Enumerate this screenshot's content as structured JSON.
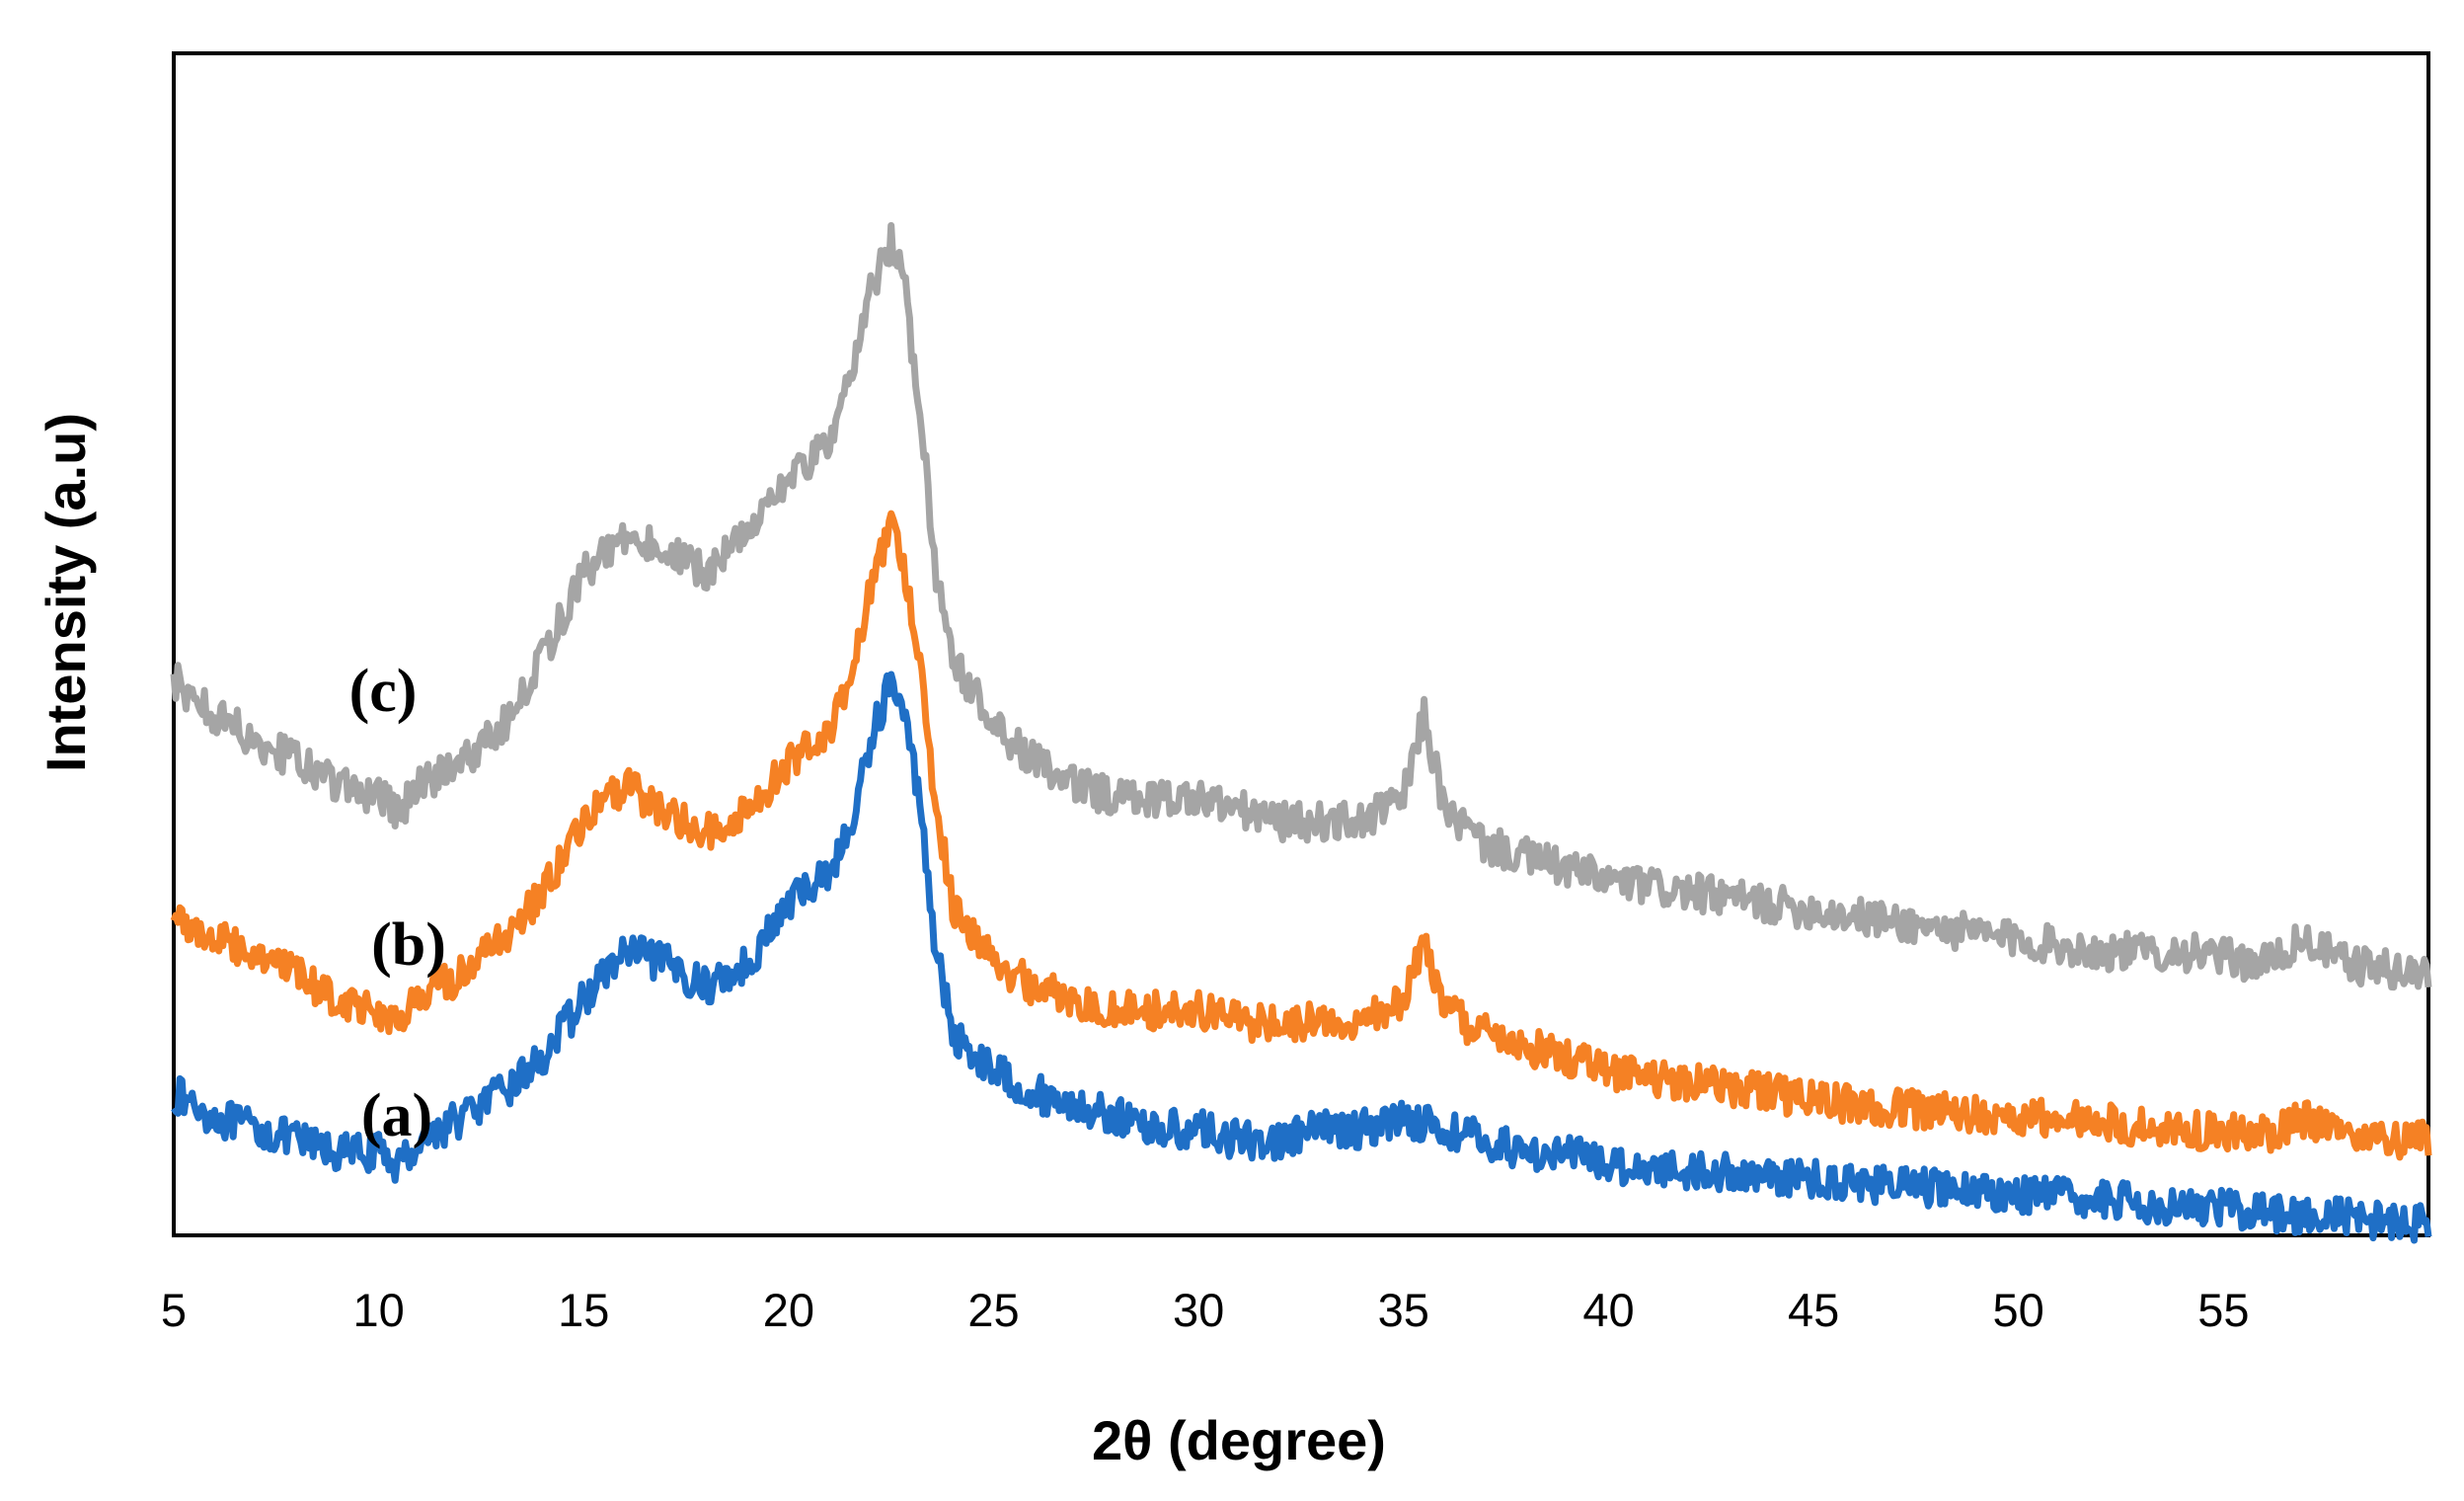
{
  "chart_data": {
    "type": "line",
    "title": "",
    "xlabel": "2θ (degree)",
    "ylabel": "Intensity (a.u)",
    "xlim": [
      5,
      60
    ],
    "ylim": [
      0,
      100
    ],
    "x_ticks": [
      5,
      10,
      15,
      20,
      25,
      30,
      35,
      40,
      45,
      50,
      55
    ],
    "y_ticks_shown": false,
    "grid": false,
    "legend": "none",
    "series": [
      {
        "name": "(a)",
        "color": "#1f6fc6",
        "x": [
          5,
          6,
          7,
          8,
          9,
          10,
          10.5,
          11,
          12,
          13,
          14,
          15,
          16,
          17,
          18,
          19,
          20,
          21,
          21.5,
          22,
          22.5,
          22.8,
          23.2,
          23.6,
          24,
          25,
          26,
          27,
          28,
          29,
          30,
          31,
          32,
          33,
          34,
          35,
          36,
          37,
          38,
          39,
          40,
          42,
          44,
          46,
          48,
          50,
          52,
          54,
          56,
          58,
          60
        ],
        "y": [
          12,
          10,
          9,
          8,
          7,
          7,
          6,
          8,
          10,
          12,
          15,
          20,
          24,
          23,
          21,
          23,
          28,
          31,
          34,
          42,
          47,
          44,
          37,
          24,
          17,
          14,
          12,
          11,
          10,
          9,
          9,
          8,
          8,
          9,
          9,
          10,
          9,
          8,
          7,
          7,
          6,
          5.5,
          5,
          4.5,
          4,
          3.5,
          3,
          2.5,
          2,
          1.5,
          1
        ]
      },
      {
        "name": "(b)",
        "color": "#f58124",
        "x": [
          5,
          6,
          7,
          8,
          9,
          10,
          10.5,
          11,
          12,
          13,
          14,
          15,
          16,
          17,
          18,
          19,
          20,
          21,
          21.5,
          22,
          22.5,
          22.8,
          23.2,
          23.6,
          24,
          25,
          26,
          27,
          28,
          29,
          30,
          31,
          32,
          33,
          34,
          35,
          35.5,
          36,
          37,
          38,
          39,
          40,
          42,
          44,
          46,
          48,
          50,
          52,
          54,
          56,
          57,
          58,
          60
        ],
        "y": [
          27,
          25,
          24,
          22,
          20,
          19,
          18,
          20,
          22,
          25,
          29,
          35,
          38,
          36,
          34,
          36,
          40,
          43,
          47,
          55,
          60,
          57,
          49,
          36,
          28,
          23,
          21,
          20,
          19,
          19,
          19,
          18,
          18,
          18,
          18,
          20,
          25,
          19,
          17,
          16,
          15,
          14,
          13,
          12,
          11,
          10.5,
          10,
          9.5,
          9,
          8.5,
          10,
          8.5,
          8
        ]
      },
      {
        "name": "(c)",
        "color": "#a5a5a5",
        "x": [
          5,
          6,
          7,
          8,
          9,
          10,
          10.5,
          11,
          12,
          13,
          14,
          15,
          16,
          17,
          18,
          19,
          20,
          21,
          21.5,
          22,
          22.5,
          22.8,
          23.2,
          23.6,
          24,
          25,
          26,
          27,
          28,
          29,
          30,
          31,
          32,
          33,
          34,
          35,
          35.5,
          36,
          37,
          38,
          39,
          40,
          42,
          44,
          46,
          48,
          50,
          52,
          54,
          56,
          57,
          58,
          60
        ],
        "y": [
          47,
          44,
          42,
          40,
          38,
          37,
          36,
          38,
          40,
          43,
          49,
          56,
          59,
          58,
          56,
          60,
          64,
          67,
          72,
          80,
          84,
          81,
          70,
          56,
          49,
          43,
          40,
          38,
          37,
          37,
          37,
          36,
          35,
          35,
          35,
          37,
          44,
          36,
          33,
          32,
          31,
          30,
          29,
          28,
          27,
          26,
          25,
          24,
          24,
          23,
          25,
          23,
          22
        ]
      }
    ]
  }
}
